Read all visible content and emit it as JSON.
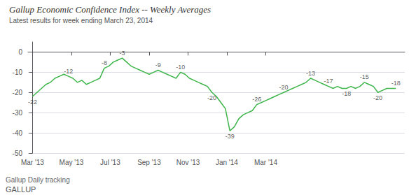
{
  "chart_data": {
    "type": "line",
    "title": "Gallup Economic Confidence Index -- Weekly Averages",
    "subtitle": "Latest results for week ending March 23, 2014",
    "footer": [
      "Gallup Daily tracking",
      "GALLUP"
    ],
    "color": "#3db54a",
    "grid": true,
    "xlim": [
      -1,
      83
    ],
    "xticks": [
      {
        "value": 0,
        "label": "Mar '13"
      },
      {
        "value": 8.67,
        "label": "May '13"
      },
      {
        "value": 17.33,
        "label": "Jul '13"
      },
      {
        "value": 26.0,
        "label": "Sep '13"
      },
      {
        "value": 34.67,
        "label": "Nov '13"
      },
      {
        "value": 43.33,
        "label": "Jan '14"
      },
      {
        "value": 52.0,
        "label": "Mar '14"
      }
    ],
    "ylim": [
      -50,
      5
    ],
    "yticks": [
      0,
      -10,
      -20,
      -30,
      -40,
      -50
    ],
    "x": [
      0,
      1,
      2,
      3,
      4,
      5,
      6,
      7,
      8,
      9,
      10,
      11,
      12,
      13,
      14,
      15,
      16,
      17,
      18,
      19,
      20,
      21,
      22,
      23,
      24,
      25,
      26,
      27,
      28,
      29,
      30,
      31,
      32,
      33,
      34,
      35,
      36,
      37,
      38,
      39,
      40,
      41,
      42,
      43,
      44,
      45,
      46,
      47,
      48,
      49,
      50,
      51,
      52,
      53,
      54,
      55,
      56,
      57,
      58,
      59,
      60,
      61,
      62,
      63,
      64,
      65,
      66,
      67,
      68,
      69,
      70,
      71,
      72,
      73,
      74,
      75,
      76,
      77,
      78,
      79,
      80,
      81
    ],
    "values": [
      -22,
      -20,
      -18,
      -16,
      -15,
      -13,
      -12,
      -11,
      -12,
      -13,
      -15,
      -14,
      -16,
      -15,
      -14,
      -13,
      -8,
      -7,
      -5,
      -4,
      -3,
      -5,
      -7,
      -8,
      -9,
      -10,
      -11,
      -10,
      -9,
      -10,
      -11,
      -12,
      -13,
      -10,
      -11,
      -13,
      -14,
      -15,
      -16,
      -17,
      -20,
      -22,
      -25,
      -28,
      -39,
      -37,
      -33,
      -31,
      -30,
      -29,
      -26,
      -25,
      -24,
      -23,
      -22,
      -21,
      -20,
      -19,
      -18,
      -17,
      -16,
      -15,
      -13,
      -14,
      -15,
      -16,
      -17,
      -18,
      -17,
      -18,
      -18,
      -17,
      -18,
      -17,
      -15,
      -16,
      -17,
      -20,
      -19,
      -18,
      -18,
      -18
    ],
    "annotations": [
      {
        "x": 0,
        "y": -22,
        "label": "-22"
      },
      {
        "x": 8,
        "y": -12,
        "label": "-12"
      },
      {
        "x": 16,
        "y": -8,
        "label": "-8"
      },
      {
        "x": 20,
        "y": -3,
        "label": "-3"
      },
      {
        "x": 28,
        "y": -9,
        "label": "-9"
      },
      {
        "x": 33,
        "y": -10,
        "label": "-10"
      },
      {
        "x": 40,
        "y": -20,
        "label": "-20"
      },
      {
        "x": 44,
        "y": -39,
        "label": "-39"
      },
      {
        "x": 50,
        "y": -26,
        "label": "-26"
      },
      {
        "x": 56,
        "y": -20,
        "label": "-20"
      },
      {
        "x": 62,
        "y": -13,
        "label": "-13"
      },
      {
        "x": 66,
        "y": -17,
        "label": "-17"
      },
      {
        "x": 70,
        "y": -18,
        "label": "-18"
      },
      {
        "x": 74,
        "y": -15,
        "label": "-15"
      },
      {
        "x": 77,
        "y": -20,
        "label": "-20"
      },
      {
        "x": 81,
        "y": -18,
        "label": "-18"
      }
    ]
  }
}
